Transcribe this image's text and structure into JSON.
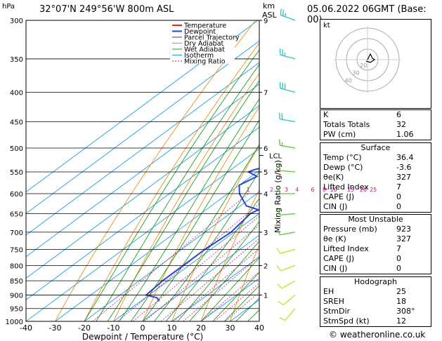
{
  "header": {
    "hpa_label": "hPa",
    "location": "32°07'N  249°56'W  800m  ASL",
    "km_label": "km",
    "asl_label": "ASL",
    "datetime": "05.06.2022  06GMT  (Base: 00)",
    "footer": "© weatheronline.co.uk"
  },
  "hodograph": {
    "label": "kt",
    "ring_labels": [
      "40",
      "30",
      "20"
    ]
  },
  "indices": {
    "rows": [
      {
        "label": "K",
        "value": "6"
      },
      {
        "label": "Totals Totals",
        "value": "32"
      },
      {
        "label": "PW (cm)",
        "value": "1.06"
      }
    ]
  },
  "surface": {
    "title": "Surface",
    "rows": [
      {
        "label": "Temp (°C)",
        "value": "36.4"
      },
      {
        "label": "Dewp (°C)",
        "value": "-3.6"
      },
      {
        "label": "θe(K)",
        "value": "327"
      },
      {
        "label": "Lifted Index",
        "value": "7"
      },
      {
        "label": "CAPE (J)",
        "value": "0"
      },
      {
        "label": "CIN (J)",
        "value": "0"
      }
    ]
  },
  "most_unstable": {
    "title": "Most Unstable",
    "rows": [
      {
        "label": "Pressure (mb)",
        "value": "923"
      },
      {
        "label": "θe (K)",
        "value": "327"
      },
      {
        "label": "Lifted Index",
        "value": "7"
      },
      {
        "label": "CAPE (J)",
        "value": "0"
      },
      {
        "label": "CIN (J)",
        "value": "0"
      }
    ]
  },
  "hodo_table": {
    "title": "Hodograph",
    "rows": [
      {
        "label": "EH",
        "value": "25"
      },
      {
        "label": "SREH",
        "value": "18"
      },
      {
        "label": "StmDir",
        "value": "308°"
      },
      {
        "label": "StmSpd (kt)",
        "value": "12"
      }
    ]
  },
  "chart_data": {
    "type": "line",
    "xlabel": "Dewpoint / Temperature (°C)",
    "ylabel": "",
    "mixing_ratio_label": "Mixing Ratio (g/kg)",
    "xlim": [
      -40,
      40
    ],
    "ylim": [
      1000,
      300
    ],
    "x_ticks": [
      "-40",
      "-30",
      "-20",
      "-10",
      "0",
      "10",
      "20",
      "30",
      "40"
    ],
    "pressure_levels": [
      300,
      350,
      400,
      450,
      500,
      550,
      600,
      650,
      700,
      750,
      800,
      850,
      900,
      950,
      1000
    ],
    "pressure_labels": [
      "300",
      "350",
      "400",
      "450",
      "500",
      "550",
      "600",
      "650",
      "700",
      "750",
      "800",
      "850",
      "900",
      "950",
      "1000"
    ],
    "km_ticks": [
      {
        "p": 300,
        "label": "9"
      },
      {
        "p": 400,
        "label": "7"
      },
      {
        "p": 500,
        "label": "6"
      },
      {
        "p": 550,
        "label": "5"
      },
      {
        "p": 600,
        "label": "4"
      },
      {
        "p": 700,
        "label": "3"
      },
      {
        "p": 800,
        "label": "2"
      },
      {
        "p": 900,
        "label": "1"
      }
    ],
    "lcl": {
      "p": 515,
      "label": "LCL"
    },
    "mixing_ratio_values": [
      "1",
      "2",
      "3",
      "4",
      "6",
      "8",
      "10",
      "15",
      "20",
      "25"
    ],
    "legend": [
      "Temperature",
      "Dewpoint",
      "Parcel Trajectory",
      "Dry Adiabat",
      "Wet Adiabat",
      "Isotherm",
      "Mixing Ratio"
    ],
    "legend_position": "top-left",
    "colors": {
      "temperature": "#e8261c",
      "dewpoint": "#2a45cc",
      "parcel": "#a0a0a0",
      "dry_adiabat": "#e98f1c",
      "wet_adiabat": "#1f9c1f",
      "isotherm": "#1aa0e0",
      "mixing_ratio": "#c8108a",
      "barb_upper": "#2fc0c0",
      "barb_mid": "#5fc838",
      "barb_low": "#c8e020"
    },
    "series": [
      {
        "name": "Temperature",
        "points": [
          [
            300,
            -30.5
          ],
          [
            350,
            -22
          ],
          [
            400,
            -15
          ],
          [
            450,
            -9
          ],
          [
            480,
            -5
          ],
          [
            500,
            -4
          ],
          [
            520,
            -3.5
          ],
          [
            540,
            -2.5
          ],
          [
            560,
            -1.5
          ],
          [
            580,
            0
          ],
          [
            600,
            2
          ],
          [
            650,
            7
          ],
          [
            700,
            12.5
          ],
          [
            750,
            18
          ],
          [
            800,
            23
          ],
          [
            850,
            28
          ],
          [
            900,
            32
          ],
          [
            920,
            34.5
          ],
          [
            923,
            36.4
          ]
        ]
      },
      {
        "name": "Dewpoint",
        "points": [
          [
            300,
            -50
          ],
          [
            320,
            -50
          ],
          [
            350,
            -48
          ],
          [
            380,
            -42
          ],
          [
            400,
            -38
          ],
          [
            410,
            -35
          ],
          [
            425,
            -37
          ],
          [
            430,
            -41
          ],
          [
            450,
            -40
          ],
          [
            475,
            -38
          ],
          [
            500,
            -38
          ],
          [
            520,
            -34
          ],
          [
            535,
            -27
          ],
          [
            545,
            -32
          ],
          [
            550,
            -33
          ],
          [
            560,
            -28
          ],
          [
            580,
            -30
          ],
          [
            600,
            -26
          ],
          [
            630,
            -18
          ],
          [
            640,
            -12
          ],
          [
            650,
            -13
          ],
          [
            700,
            -11
          ],
          [
            750,
            -12
          ],
          [
            800,
            -12
          ],
          [
            850,
            -12
          ],
          [
            900,
            -11
          ],
          [
            910,
            -6
          ],
          [
            923,
            -3.6
          ]
        ]
      },
      {
        "name": "Parcel Trajectory",
        "points": [
          [
            300,
            -40
          ],
          [
            350,
            -31
          ],
          [
            400,
            -23
          ],
          [
            450,
            -16
          ],
          [
            500,
            -10
          ],
          [
            515,
            -8
          ],
          [
            600,
            1.5
          ],
          [
            700,
            14
          ],
          [
            800,
            25
          ],
          [
            900,
            35
          ],
          [
            923,
            36.4
          ]
        ]
      }
    ],
    "wind_barbs": [
      {
        "p": 300,
        "dir": 290,
        "spd": 25
      },
      {
        "p": 350,
        "dir": 285,
        "spd": 25
      },
      {
        "p": 400,
        "dir": 285,
        "spd": 30
      },
      {
        "p": 450,
        "dir": 280,
        "spd": 20
      },
      {
        "p": 500,
        "dir": 280,
        "spd": 15
      },
      {
        "p": 550,
        "dir": 275,
        "spd": 10
      },
      {
        "p": 600,
        "dir": 270,
        "spd": 10
      },
      {
        "p": 650,
        "dir": 265,
        "spd": 10
      },
      {
        "p": 700,
        "dir": 260,
        "spd": 10
      },
      {
        "p": 750,
        "dir": 255,
        "spd": 10
      },
      {
        "p": 800,
        "dir": 250,
        "spd": 10
      },
      {
        "p": 850,
        "dir": 240,
        "spd": 10
      },
      {
        "p": 900,
        "dir": 230,
        "spd": 10
      },
      {
        "p": 950,
        "dir": 220,
        "spd": 10
      }
    ]
  }
}
